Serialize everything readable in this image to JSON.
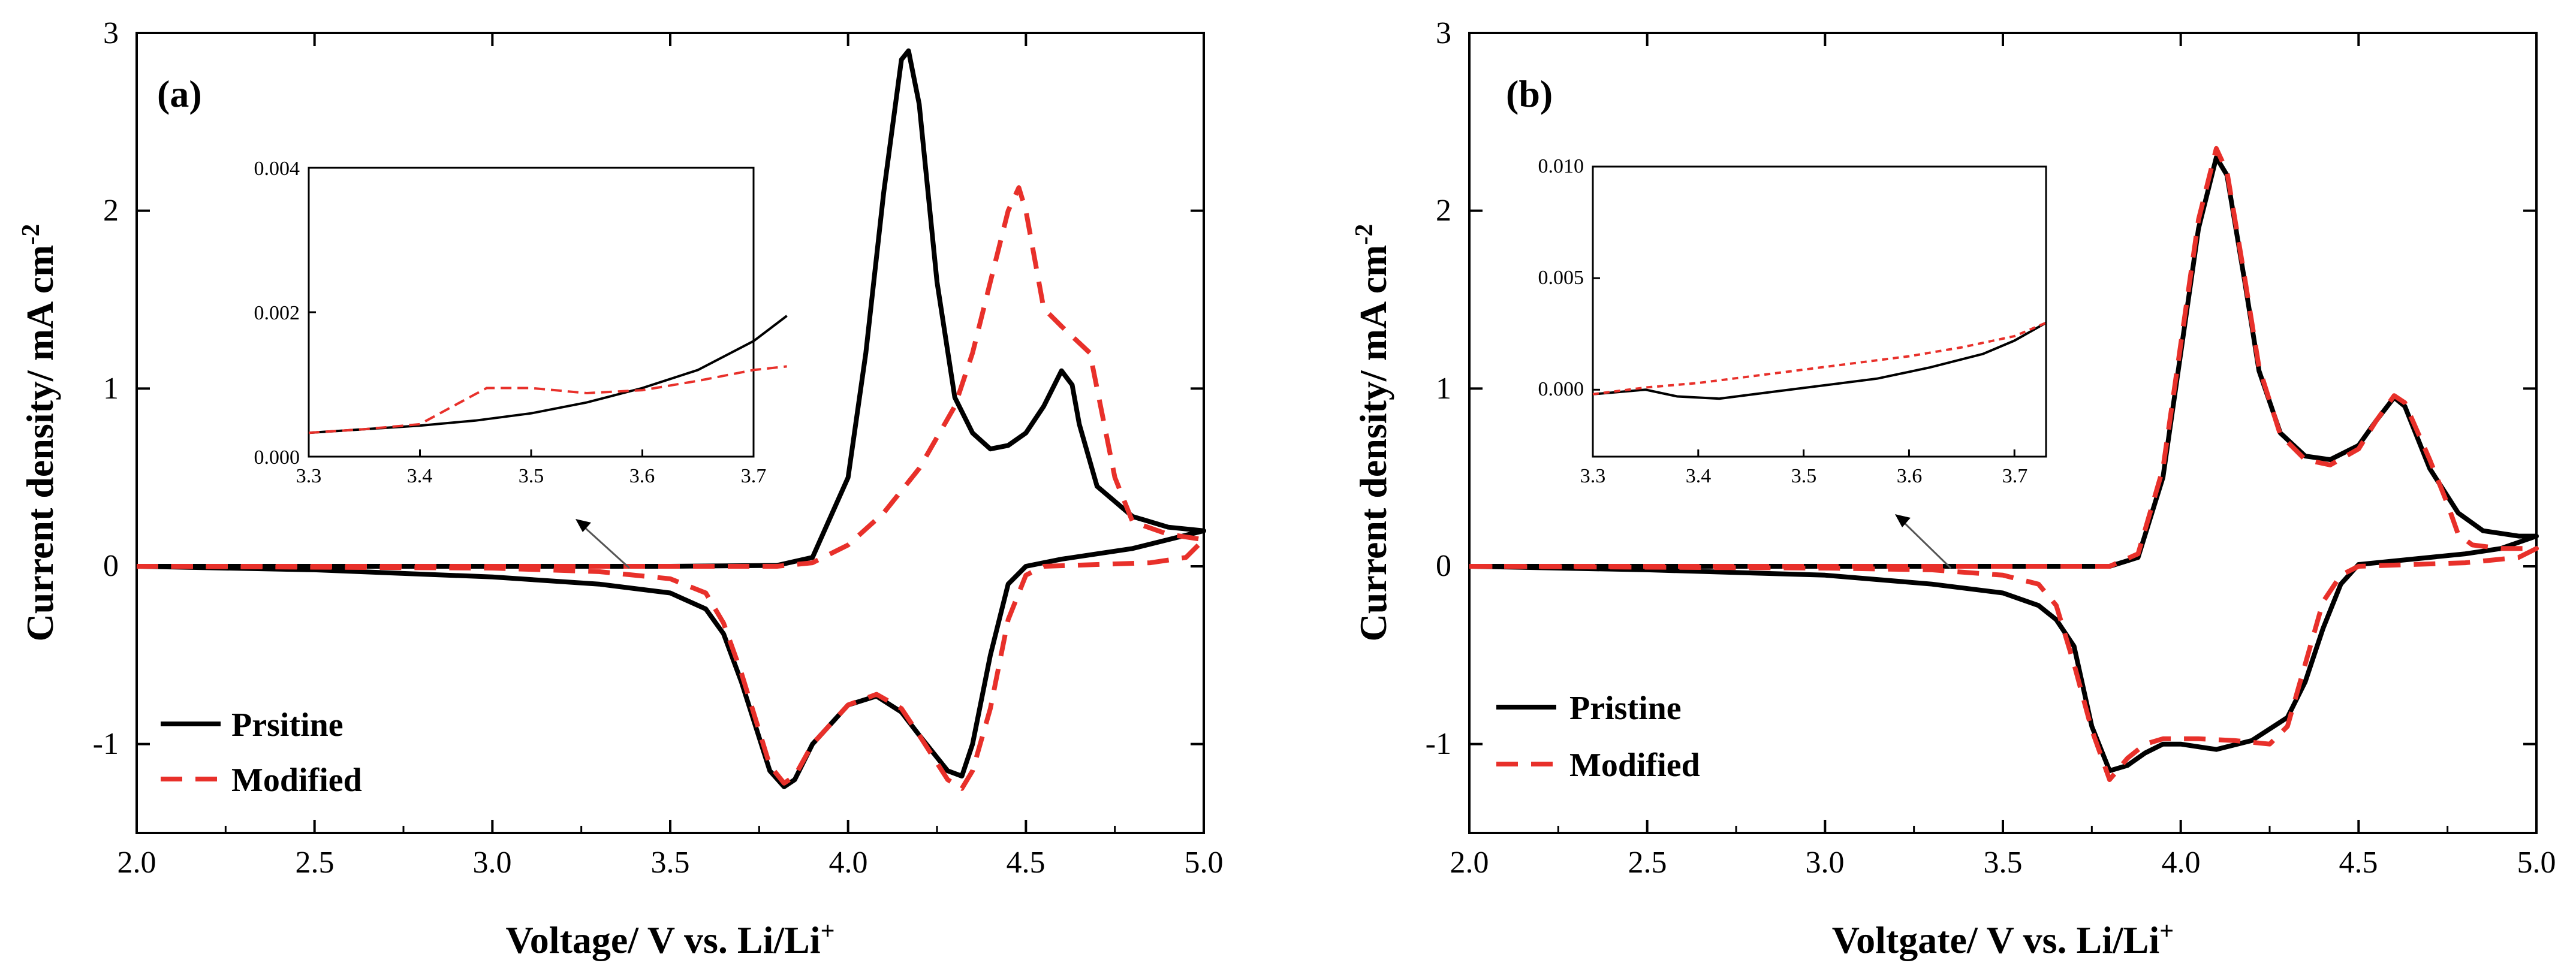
{
  "chart_data": [
    {
      "type": "line",
      "panel_label": "(a)",
      "xlabel_main": "Voltage/ V vs. Li/Li",
      "xlabel_sup": "+",
      "ylabel_main": "Current density/ mA cm",
      "ylabel_sup": "-2",
      "xlim": [
        2.0,
        5.0
      ],
      "ylim": [
        -1.5,
        3.0
      ],
      "xticks": [
        "2.0",
        "2.5",
        "3.0",
        "3.5",
        "4.0",
        "4.5",
        "5.0"
      ],
      "yticks": [
        "-1",
        "0",
        "1",
        "2",
        "3"
      ],
      "series": [
        {
          "name": "Prsitine",
          "color": "#000000",
          "style": "solid",
          "points": [
            [
              2.0,
              0.0
            ],
            [
              2.5,
              0.0
            ],
            [
              3.0,
              0.0
            ],
            [
              3.5,
              0.0
            ],
            [
              3.8,
              0.005
            ],
            [
              3.9,
              0.05
            ],
            [
              4.0,
              0.5
            ],
            [
              4.05,
              1.2
            ],
            [
              4.1,
              2.1
            ],
            [
              4.15,
              2.85
            ],
            [
              4.17,
              2.9
            ],
            [
              4.2,
              2.6
            ],
            [
              4.25,
              1.6
            ],
            [
              4.3,
              0.95
            ],
            [
              4.35,
              0.75
            ],
            [
              4.4,
              0.66
            ],
            [
              4.45,
              0.68
            ],
            [
              4.5,
              0.75
            ],
            [
              4.55,
              0.9
            ],
            [
              4.6,
              1.1
            ],
            [
              4.63,
              1.02
            ],
            [
              4.65,
              0.8
            ],
            [
              4.7,
              0.45
            ],
            [
              4.8,
              0.28
            ],
            [
              4.9,
              0.22
            ],
            [
              5.0,
              0.2
            ],
            [
              4.9,
              0.15
            ],
            [
              4.8,
              0.1
            ],
            [
              4.7,
              0.07
            ],
            [
              4.6,
              0.04
            ],
            [
              4.5,
              0.0
            ],
            [
              4.45,
              -0.1
            ],
            [
              4.4,
              -0.5
            ],
            [
              4.35,
              -1.0
            ],
            [
              4.32,
              -1.18
            ],
            [
              4.28,
              -1.15
            ],
            [
              4.2,
              -0.95
            ],
            [
              4.15,
              -0.82
            ],
            [
              4.08,
              -0.73
            ],
            [
              4.0,
              -0.78
            ],
            [
              3.9,
              -1.0
            ],
            [
              3.85,
              -1.2
            ],
            [
              3.82,
              -1.24
            ],
            [
              3.78,
              -1.15
            ],
            [
              3.7,
              -0.65
            ],
            [
              3.65,
              -0.38
            ],
            [
              3.6,
              -0.24
            ],
            [
              3.5,
              -0.15
            ],
            [
              3.3,
              -0.1
            ],
            [
              3.0,
              -0.06
            ],
            [
              2.5,
              -0.02
            ],
            [
              2.0,
              0.0
            ]
          ]
        },
        {
          "name": "Modified",
          "color": "#e8302a",
          "style": "dashed",
          "points": [
            [
              2.0,
              0.0
            ],
            [
              2.5,
              0.0
            ],
            [
              3.0,
              0.0
            ],
            [
              3.5,
              0.0
            ],
            [
              3.8,
              0.0
            ],
            [
              3.9,
              0.02
            ],
            [
              4.0,
              0.12
            ],
            [
              4.1,
              0.3
            ],
            [
              4.2,
              0.55
            ],
            [
              4.3,
              0.9
            ],
            [
              4.35,
              1.2
            ],
            [
              4.4,
              1.6
            ],
            [
              4.45,
              2.0
            ],
            [
              4.48,
              2.13
            ],
            [
              4.5,
              2.0
            ],
            [
              4.55,
              1.45
            ],
            [
              4.6,
              1.35
            ],
            [
              4.68,
              1.2
            ],
            [
              4.75,
              0.5
            ],
            [
              4.8,
              0.25
            ],
            [
              4.9,
              0.18
            ],
            [
              5.0,
              0.15
            ],
            [
              4.95,
              0.05
            ],
            [
              4.85,
              0.02
            ],
            [
              4.7,
              0.01
            ],
            [
              4.55,
              0.0
            ],
            [
              4.5,
              -0.05
            ],
            [
              4.45,
              -0.3
            ],
            [
              4.4,
              -0.8
            ],
            [
              4.35,
              -1.15
            ],
            [
              4.32,
              -1.25
            ],
            [
              4.28,
              -1.2
            ],
            [
              4.2,
              -0.95
            ],
            [
              4.15,
              -0.8
            ],
            [
              4.08,
              -0.72
            ],
            [
              4.0,
              -0.78
            ],
            [
              3.9,
              -1.0
            ],
            [
              3.85,
              -1.18
            ],
            [
              3.82,
              -1.22
            ],
            [
              3.78,
              -1.12
            ],
            [
              3.7,
              -0.6
            ],
            [
              3.65,
              -0.32
            ],
            [
              3.6,
              -0.15
            ],
            [
              3.5,
              -0.07
            ],
            [
              3.3,
              -0.03
            ],
            [
              3.0,
              -0.01
            ],
            [
              2.0,
              0.0
            ]
          ]
        }
      ],
      "inset": {
        "xlim": [
          3.3,
          3.7
        ],
        "ylim": [
          0.0,
          0.004
        ],
        "xticks": [
          "3.3",
          "3.4",
          "3.5",
          "3.6",
          "3.7"
        ],
        "yticks": [
          "0.000",
          "0.002",
          "0.004"
        ],
        "series": [
          {
            "name": "Prsitine",
            "points": [
              [
                3.3,
                0.00033
              ],
              [
                3.35,
                0.00038
              ],
              [
                3.4,
                0.00043
              ],
              [
                3.45,
                0.0005
              ],
              [
                3.5,
                0.0006
              ],
              [
                3.55,
                0.00075
              ],
              [
                3.6,
                0.00095
              ],
              [
                3.65,
                0.0012
              ],
              [
                3.7,
                0.0016
              ],
              [
                3.73,
                0.00195
              ]
            ]
          },
          {
            "name": "Modified",
            "points": [
              [
                3.3,
                0.00033
              ],
              [
                3.35,
                0.00038
              ],
              [
                3.4,
                0.00045
              ],
              [
                3.43,
                0.0007
              ],
              [
                3.46,
                0.00095
              ],
              [
                3.5,
                0.00095
              ],
              [
                3.55,
                0.00088
              ],
              [
                3.6,
                0.00092
              ],
              [
                3.65,
                0.00105
              ],
              [
                3.7,
                0.0012
              ],
              [
                3.73,
                0.00125
              ]
            ]
          }
        ]
      }
    },
    {
      "type": "line",
      "panel_label": "(b)",
      "xlabel_main": "Voltgate/ V vs. Li/Li",
      "xlabel_sup": "+",
      "ylabel_main": "Current density/ mA cm",
      "ylabel_sup": "-2",
      "xlim": [
        2.0,
        5.0
      ],
      "ylim": [
        -1.5,
        3.0
      ],
      "xticks": [
        "2.0",
        "2.5",
        "3.0",
        "3.5",
        "4.0",
        "4.5",
        "5.0"
      ],
      "yticks": [
        "-1",
        "0",
        "1",
        "2",
        "3"
      ],
      "series": [
        {
          "name": "Pristine",
          "color": "#000000",
          "style": "solid",
          "points": [
            [
              2.0,
              0.0
            ],
            [
              3.0,
              0.0
            ],
            [
              3.8,
              0.0
            ],
            [
              3.88,
              0.05
            ],
            [
              3.95,
              0.5
            ],
            [
              4.0,
              1.2
            ],
            [
              4.05,
              1.9
            ],
            [
              4.1,
              2.3
            ],
            [
              4.13,
              2.2
            ],
            [
              4.18,
              1.6
            ],
            [
              4.22,
              1.1
            ],
            [
              4.28,
              0.75
            ],
            [
              4.35,
              0.62
            ],
            [
              4.42,
              0.6
            ],
            [
              4.5,
              0.68
            ],
            [
              4.55,
              0.82
            ],
            [
              4.6,
              0.95
            ],
            [
              4.63,
              0.9
            ],
            [
              4.7,
              0.55
            ],
            [
              4.78,
              0.3
            ],
            [
              4.85,
              0.2
            ],
            [
              4.95,
              0.17
            ],
            [
              5.0,
              0.17
            ],
            [
              4.9,
              0.1
            ],
            [
              4.8,
              0.07
            ],
            [
              4.65,
              0.04
            ],
            [
              4.5,
              0.01
            ],
            [
              4.45,
              -0.1
            ],
            [
              4.4,
              -0.35
            ],
            [
              4.35,
              -0.65
            ],
            [
              4.3,
              -0.85
            ],
            [
              4.2,
              -0.98
            ],
            [
              4.1,
              -1.03
            ],
            [
              4.0,
              -1.0
            ],
            [
              3.95,
              -1.0
            ],
            [
              3.9,
              -1.05
            ],
            [
              3.85,
              -1.12
            ],
            [
              3.8,
              -1.15
            ],
            [
              3.75,
              -0.9
            ],
            [
              3.7,
              -0.45
            ],
            [
              3.65,
              -0.3
            ],
            [
              3.6,
              -0.22
            ],
            [
              3.5,
              -0.15
            ],
            [
              3.3,
              -0.1
            ],
            [
              3.0,
              -0.05
            ],
            [
              2.5,
              -0.02
            ],
            [
              2.0,
              0.0
            ]
          ]
        },
        {
          "name": "Modified",
          "color": "#e8302a",
          "style": "dashed",
          "points": [
            [
              2.0,
              0.0
            ],
            [
              3.0,
              0.0
            ],
            [
              3.8,
              0.0
            ],
            [
              3.88,
              0.07
            ],
            [
              3.95,
              0.55
            ],
            [
              4.0,
              1.25
            ],
            [
              4.05,
              1.95
            ],
            [
              4.1,
              2.35
            ],
            [
              4.13,
              2.22
            ],
            [
              4.18,
              1.62
            ],
            [
              4.22,
              1.12
            ],
            [
              4.28,
              0.74
            ],
            [
              4.35,
              0.6
            ],
            [
              4.42,
              0.57
            ],
            [
              4.5,
              0.66
            ],
            [
              4.55,
              0.82
            ],
            [
              4.6,
              0.96
            ],
            [
              4.63,
              0.92
            ],
            [
              4.7,
              0.6
            ],
            [
              4.75,
              0.35
            ],
            [
              4.78,
              0.18
            ],
            [
              4.82,
              0.12
            ],
            [
              4.9,
              0.1
            ],
            [
              5.0,
              0.1
            ],
            [
              4.95,
              0.05
            ],
            [
              4.8,
              0.02
            ],
            [
              4.65,
              0.01
            ],
            [
              4.5,
              0.0
            ],
            [
              4.45,
              -0.05
            ],
            [
              4.4,
              -0.2
            ],
            [
              4.35,
              -0.55
            ],
            [
              4.3,
              -0.9
            ],
            [
              4.25,
              -1.0
            ],
            [
              4.15,
              -0.98
            ],
            [
              4.05,
              -0.97
            ],
            [
              3.95,
              -0.97
            ],
            [
              3.9,
              -1.0
            ],
            [
              3.85,
              -1.08
            ],
            [
              3.8,
              -1.2
            ],
            [
              3.75,
              -0.92
            ],
            [
              3.7,
              -0.55
            ],
            [
              3.65,
              -0.22
            ],
            [
              3.6,
              -0.1
            ],
            [
              3.5,
              -0.05
            ],
            [
              3.3,
              -0.02
            ],
            [
              3.0,
              -0.01
            ],
            [
              2.0,
              0.0
            ]
          ]
        }
      ],
      "inset": {
        "xlim": [
          3.3,
          3.73
        ],
        "ylim": [
          -0.003,
          0.01
        ],
        "xticks": [
          "3.3",
          "3.4",
          "3.5",
          "3.6",
          "3.7"
        ],
        "yticks": [
          "0.000",
          "0.005",
          "0.010"
        ],
        "series": [
          {
            "name": "Pristine",
            "points": [
              [
                3.3,
                -0.0002
              ],
              [
                3.35,
                0.0
              ],
              [
                3.38,
                -0.0003
              ],
              [
                3.42,
                -0.0004
              ],
              [
                3.47,
                -0.0001
              ],
              [
                3.52,
                0.0002
              ],
              [
                3.57,
                0.0005
              ],
              [
                3.62,
                0.001
              ],
              [
                3.67,
                0.0016
              ],
              [
                3.7,
                0.0022
              ],
              [
                3.73,
                0.003
              ]
            ]
          },
          {
            "name": "Modified",
            "points": [
              [
                3.3,
                -0.0002
              ],
              [
                3.35,
                0.0001
              ],
              [
                3.4,
                0.0003
              ],
              [
                3.45,
                0.0006
              ],
              [
                3.5,
                0.0009
              ],
              [
                3.55,
                0.0012
              ],
              [
                3.6,
                0.0015
              ],
              [
                3.65,
                0.0019
              ],
              [
                3.7,
                0.0024
              ],
              [
                3.73,
                0.003
              ]
            ]
          }
        ]
      }
    }
  ]
}
